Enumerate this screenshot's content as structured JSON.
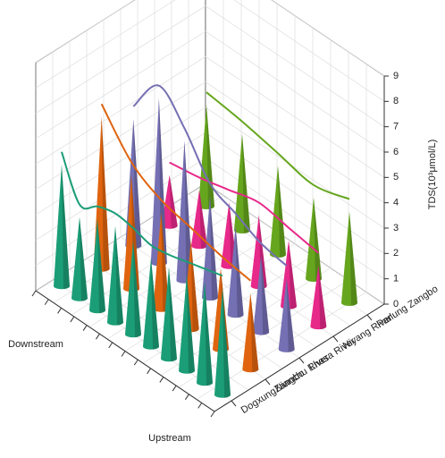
{
  "chart_data": {
    "type": "cone",
    "x_axis_labels": {
      "start": "Downstream",
      "end": "Upstream"
    },
    "zlabel": "TDS(10³μmol/L)",
    "zlim": [
      0,
      9
    ],
    "zticks": [
      0,
      1,
      2,
      3,
      4,
      5,
      6,
      7,
      8,
      9
    ],
    "grid": true,
    "series": [
      {
        "name": "DogxungZangbo",
        "color": "#1b9e77",
        "values": [
          4.8,
          3.2,
          3.6,
          3.8,
          3.7,
          3.5,
          3.6,
          3.8,
          4.0,
          4.2
        ]
      },
      {
        "name": "Nianchu River",
        "color": "#e0640f",
        "values": [
          6.0,
          4.5,
          3.8,
          3.5,
          3.2,
          3.0
        ]
      },
      {
        "name": "Lhasa River",
        "color": "#7570b3",
        "values": [
          5.0,
          6.5,
          5.5,
          4.0,
          3.5,
          3.0,
          2.8
        ]
      },
      {
        "name": "Niyang River",
        "color": "#e7298a",
        "values": [
          2.0,
          2.2,
          2.5,
          2.8,
          2.6,
          2.4
        ]
      },
      {
        "name": "Parlung Zangbo",
        "color": "#66a61e",
        "values": [
          4.0,
          3.8,
          3.5,
          3.2,
          3.6
        ]
      }
    ]
  }
}
